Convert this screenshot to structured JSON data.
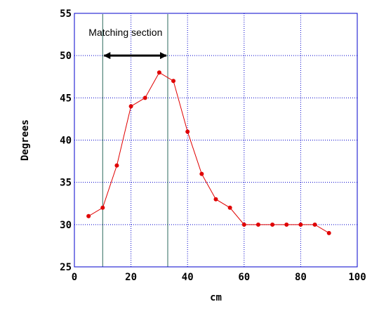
{
  "chart_data": {
    "type": "line",
    "title": "",
    "xlabel": "cm",
    "ylabel": "Degrees",
    "xlim": [
      0,
      100
    ],
    "ylim": [
      25,
      55
    ],
    "xticks": [
      0,
      20,
      40,
      60,
      80,
      100
    ],
    "yticks": [
      25,
      30,
      35,
      40,
      45,
      50,
      55
    ],
    "xtick_labels": [
      "0",
      "20",
      "40",
      "60",
      "80",
      "100"
    ],
    "ytick_labels": [
      "25",
      "30",
      "35",
      "40",
      "45",
      "50",
      "55"
    ],
    "grid": true,
    "grid_step_x": 20,
    "grid_step_y": 5,
    "series": [
      {
        "x": [
          5,
          10,
          15,
          20,
          25,
          30,
          35,
          40,
          45,
          50,
          55,
          60,
          65,
          70,
          75,
          80,
          85,
          90
        ],
        "y": [
          31,
          32,
          37,
          44,
          45,
          48,
          47,
          41,
          36,
          33,
          32,
          30,
          30,
          30,
          30,
          30,
          30,
          29
        ],
        "color": "#e00000",
        "marker": "circle"
      }
    ],
    "annotations": {
      "matching_section": {
        "text": "Matching section",
        "x_start": 10,
        "x_end": 33,
        "arrow_y": 50,
        "line_color": "#2e6b5e"
      }
    },
    "colors": {
      "frame": "#0000cc",
      "grid": "#0000cc",
      "series": "#e00000",
      "arrow": "#000000"
    }
  }
}
